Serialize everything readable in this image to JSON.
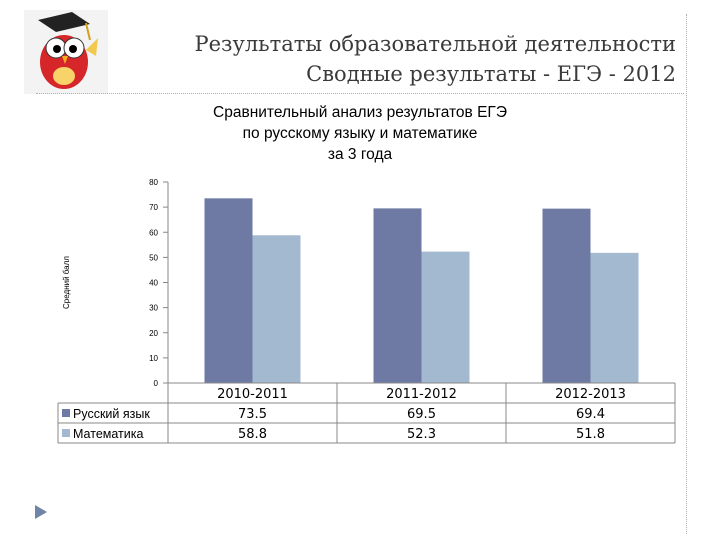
{
  "header": {
    "title_line1": "Результаты образовательной деятельности",
    "title_line2": "Сводные результаты - ЕГЭ - 2012"
  },
  "logo": {
    "icon": "owl-graduation-cap-icon"
  },
  "nav": {
    "arrow_icon": "arrow-right-icon"
  },
  "chart_data": {
    "type": "bar",
    "title_lines": [
      "Сравнительный анализ результатов ЕГЭ",
      "по русскому языку и математике",
      "за 3 года"
    ],
    "ylabel": "Средний балл",
    "xlabel": "",
    "ylim": [
      0,
      80
    ],
    "yticks": [
      0,
      10,
      20,
      30,
      40,
      50,
      60,
      70,
      80
    ],
    "categories": [
      "2010-2011",
      "2011-2012",
      "2012-2013"
    ],
    "series": [
      {
        "name": "Русский язык",
        "values": [
          73.5,
          69.5,
          69.4
        ],
        "color": "#6e7aa3"
      },
      {
        "name": "Математика",
        "values": [
          58.8,
          52.3,
          51.8
        ],
        "color": "#a3b9d0"
      }
    ],
    "display_values": [
      [
        "73.5",
        "69.5",
        "69.4"
      ],
      [
        "58.8",
        "52.3",
        "51.8"
      ]
    ],
    "grid": false,
    "legend": "data-table"
  }
}
